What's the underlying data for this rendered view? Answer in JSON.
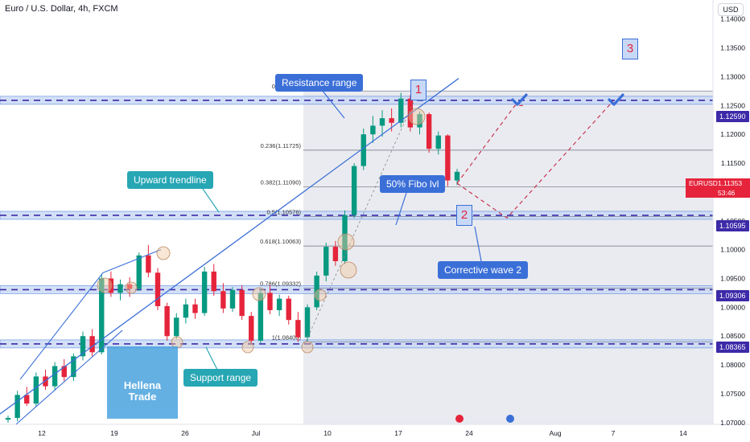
{
  "header": {
    "symbol_title": "Euro / U.S. Dollar, 4h, FXCM",
    "currency_button": "USD"
  },
  "colors": {
    "bull": "#089981",
    "bear": "#e5243b",
    "annotation_blue": "#3b6fd8",
    "annotation_teal": "#27a6b4",
    "zone_fill": "#c8d9f5",
    "level_tag": "#3c2aa8",
    "fib_shade": "#d8dbe3",
    "wave_num": "#e5243b"
  },
  "annotations": {
    "resistance_range": "Resistance range",
    "upward_trendline": "Upward trendline",
    "fibo_lvl": "50% Fibo lvl",
    "corrective_wave": "Corrective wave 2",
    "support_range": "Support range",
    "wave_1": "1",
    "wave_2": "2",
    "wave_3": "3"
  },
  "price_tags": {
    "resistance": "1.12590",
    "fib_50": "1.10595",
    "support_upper": "1.09306",
    "support_lower": "1.08365"
  },
  "current_price": {
    "symbol": "EURUSD",
    "price": "1.11353",
    "countdown": "53:46"
  },
  "watermark": {
    "line1": "Hellena",
    "line2": "Trade"
  },
  "chart_data": {
    "type": "candlestick",
    "x_ticks": [
      "12",
      "19",
      "26",
      "Jul",
      "10",
      "17",
      "24",
      "Aug",
      "7",
      "14"
    ],
    "y_ticks": [
      "1.14000",
      "1.13500",
      "1.13000",
      "1.12500",
      "1.12000",
      "1.11500",
      "1.11000",
      "1.10500",
      "1.10000",
      "1.09500",
      "1.09000",
      "1.08500",
      "1.08000",
      "1.07500",
      "1.07000"
    ],
    "ylim": [
      1.0697,
      1.1433
    ],
    "fib_levels": [
      {
        "label": "0(1.12752)",
        "value": 1.12752
      },
      {
        "label": "0.236(1.11725)",
        "value": 1.11725
      },
      {
        "label": "0.382(1.11090)",
        "value": 1.1109
      },
      {
        "label": "0.5(1.10576)",
        "value": 1.10576
      },
      {
        "label": "0.618(1.10063)",
        "value": 1.10063
      },
      {
        "label": "0.786(1.09332)",
        "value": 1.09332
      },
      {
        "label": "1(1.08400)",
        "value": 1.084
      }
    ],
    "horizontal_levels": [
      1.1259,
      1.10595,
      1.09306,
      1.08365
    ],
    "candles_approx": [
      [
        1.0705,
        1.0712,
        1.07,
        1.0708
      ],
      [
        1.0708,
        1.0755,
        1.0702,
        1.0748
      ],
      [
        1.0748,
        1.0762,
        1.0729,
        1.0733
      ],
      [
        1.0733,
        1.0787,
        1.0728,
        1.078
      ],
      [
        1.078,
        1.0792,
        1.0757,
        1.0763
      ],
      [
        1.0763,
        1.0805,
        1.0755,
        1.0798
      ],
      [
        1.0798,
        1.081,
        1.0772,
        1.0779
      ],
      [
        1.0779,
        1.082,
        1.0772,
        1.0815
      ],
      [
        1.0815,
        1.0858,
        1.0808,
        1.085
      ],
      [
        1.085,
        1.0862,
        1.0815,
        1.0822
      ],
      [
        1.0822,
        1.0958,
        1.0818,
        1.095
      ],
      [
        1.095,
        1.0962,
        1.0918,
        1.0925
      ],
      [
        1.0925,
        1.0948,
        1.0912,
        1.094
      ],
      [
        1.094,
        1.0952,
        1.0918,
        1.0932
      ],
      [
        1.0932,
        1.0995,
        1.0928,
        1.099
      ],
      [
        1.099,
        1.1008,
        1.0952,
        1.096
      ],
      [
        1.096,
        1.0968,
        1.0895,
        1.0902
      ],
      [
        1.0902,
        1.0908,
        1.0842,
        1.085
      ],
      [
        1.085,
        1.089,
        1.0845,
        1.0882
      ],
      [
        1.0882,
        1.0915,
        1.0872,
        1.0905
      ],
      [
        1.0905,
        1.0915,
        1.088,
        1.089
      ],
      [
        1.089,
        1.097,
        1.0885,
        1.0962
      ],
      [
        1.0962,
        1.0975,
        1.092,
        1.0928
      ],
      [
        1.0928,
        1.0942,
        1.089,
        1.0898
      ],
      [
        1.0898,
        1.0935,
        1.0892,
        1.093
      ],
      [
        1.093,
        1.0938,
        1.0878,
        1.0885
      ],
      [
        1.0885,
        1.0892,
        1.0836,
        1.0842
      ],
      [
        1.0842,
        1.0932,
        1.0838,
        1.0925
      ],
      [
        1.0925,
        1.0938,
        1.0888,
        1.0895
      ],
      [
        1.0895,
        1.0922,
        1.0885,
        1.0915
      ],
      [
        1.0915,
        1.092,
        1.087,
        1.0878
      ],
      [
        1.0878,
        1.0892,
        1.084,
        1.0848
      ],
      [
        1.0848,
        1.0905,
        1.084,
        1.09
      ],
      [
        1.09,
        1.0962,
        1.0895,
        1.0955
      ],
      [
        1.0955,
        1.1012,
        1.0945,
        1.1005
      ],
      [
        1.1005,
        1.1015,
        1.0972,
        1.098
      ],
      [
        1.098,
        1.1068,
        1.0975,
        1.106
      ],
      [
        1.106,
        1.115,
        1.1055,
        1.1145
      ],
      [
        1.1145,
        1.121,
        1.1138,
        1.12
      ],
      [
        1.12,
        1.1232,
        1.1185,
        1.1215
      ],
      [
        1.1215,
        1.1242,
        1.1196,
        1.1228
      ],
      [
        1.1228,
        1.1245,
        1.1205,
        1.122
      ],
      [
        1.122,
        1.1272,
        1.1212,
        1.1262
      ],
      [
        1.1262,
        1.1268,
        1.1205,
        1.1212
      ],
      [
        1.1212,
        1.124,
        1.12,
        1.1235
      ],
      [
        1.1235,
        1.1238,
        1.1168,
        1.1175
      ],
      [
        1.1175,
        1.1205,
        1.1165,
        1.1198
      ],
      [
        1.1198,
        1.12,
        1.111,
        1.112
      ],
      [
        1.112,
        1.114,
        1.1112,
        1.1135
      ]
    ]
  }
}
